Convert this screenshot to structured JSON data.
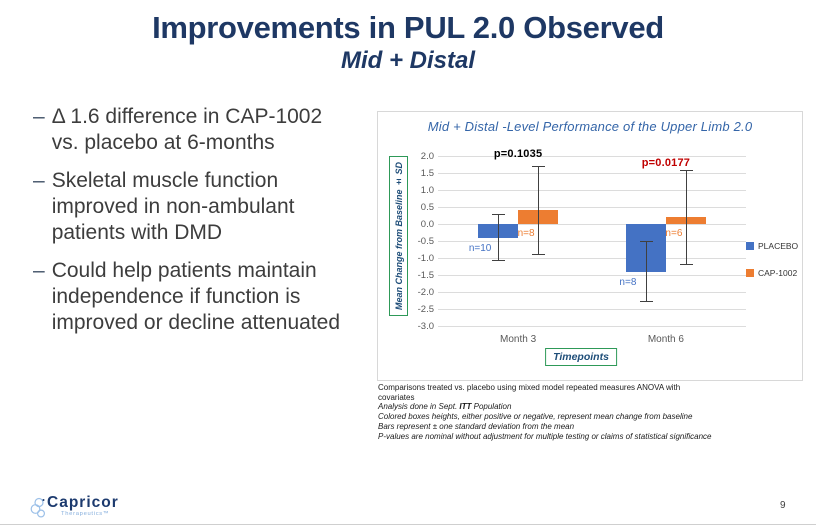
{
  "slide": {
    "title": "Improvements in PUL 2.0 Observed",
    "subtitle": "Mid + Distal",
    "page_number": "9"
  },
  "ui": {
    "bullet_marker": "–"
  },
  "bullets": [
    "Δ 1.6 difference in CAP-1002 vs. placebo at 6-months",
    "Skeletal muscle function improved in non-ambulant patients with DMD",
    "Could help patients maintain independence if function is improved or decline attenuated"
  ],
  "chart_data": {
    "type": "bar",
    "title": "Mid + Distal -Level Performance of the Upper Limb 2.0",
    "xlabel": "Timepoints",
    "ylabel": "Mean Change from Baseline ± SD",
    "ylim": [
      -3.0,
      2.0
    ],
    "ytick_step": 0.5,
    "grid": true,
    "legend_position": "right",
    "categories": [
      "Month 3",
      "Month 6"
    ],
    "group_center_fracs": [
      0.26,
      0.74
    ],
    "series": [
      {
        "name": "PLACEBO",
        "color": "#4472C4",
        "values": [
          -0.4,
          -1.4
        ],
        "err_top": [
          0.3,
          -0.5
        ],
        "err_bottom": [
          -1.1,
          -2.3
        ],
        "n_labels": [
          "n=10",
          "n=8"
        ]
      },
      {
        "name": "CAP-1002",
        "color": "#ED7D31",
        "values": [
          0.4,
          0.2
        ],
        "err_top": [
          1.7,
          1.6
        ],
        "err_bottom": [
          -0.9,
          -1.2
        ],
        "n_labels": [
          "n=8",
          "n=6"
        ]
      }
    ],
    "p_values": [
      {
        "label": "p=0.1035",
        "color": "#000000"
      },
      {
        "label": "p=0.0177",
        "color": "#C00000"
      }
    ]
  },
  "footnotes": [
    {
      "text": "Comparisons treated  vs. placebo using mixed  model repeated  measures  ANOVA with",
      "italic": false
    },
    {
      "text": "covariates",
      "italic": false
    },
    {
      "text": "Analysis done in Sept. ITT Population",
      "italic": true,
      "bold_part": "ITT"
    },
    {
      "text": "Colored boxes heights, either positive or negative, represent mean change from baseline",
      "italic": true
    },
    {
      "text": "Bars represent ± one standard deviation from the mean",
      "italic": true
    },
    {
      "text": "P-values are nominal without adjustment for multiple testing or claims of statistical significance",
      "italic": true
    }
  ],
  "logo": {
    "name": "Capricor",
    "sub": "Therapeutics™"
  }
}
